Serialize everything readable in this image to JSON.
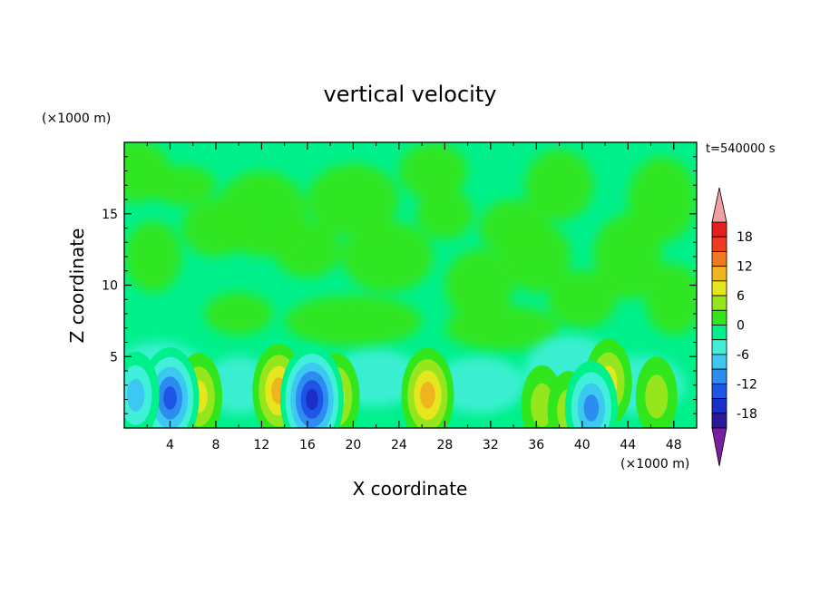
{
  "chart_data": {
    "type": "heatmap",
    "title": "vertical velocity",
    "xlabel": "X coordinate",
    "ylabel": "Z coordinate",
    "x_unit": "(×1000 m)",
    "y_unit": "(×1000 m)",
    "time_label": "t=540000 s",
    "xlim": [
      0,
      50
    ],
    "ylim": [
      0,
      20
    ],
    "x_ticks": [
      4,
      8,
      12,
      16,
      20,
      24,
      28,
      32,
      36,
      40,
      44,
      48
    ],
    "y_ticks": [
      5,
      10,
      15
    ],
    "colorbar": {
      "ticks": [
        18,
        12,
        6,
        0,
        -6,
        -12,
        -18
      ],
      "levels": [
        -21,
        -18,
        -15,
        -12,
        -9,
        -6,
        -3,
        0,
        3,
        6,
        9,
        12,
        15,
        18,
        21
      ],
      "colors": [
        "#7b1fa2",
        "#2a1a9a",
        "#1a2fc8",
        "#1e55e6",
        "#2d8cf0",
        "#3cc8f0",
        "#40f0d8",
        "#00f08c",
        "#32e61e",
        "#96e61e",
        "#e6e61e",
        "#f0b41e",
        "#f0781e",
        "#f03c1e",
        "#e61e1e",
        "#f0a0a0"
      ]
    },
    "features": [
      {
        "kind": "updraft",
        "x": 6.5,
        "z": 2.2,
        "value": 6
      },
      {
        "kind": "updraft",
        "x": 13.5,
        "z": 2.6,
        "value": 9
      },
      {
        "kind": "updraft",
        "x": 18.5,
        "z": 2.2,
        "value": 6
      },
      {
        "kind": "updraft",
        "x": 26.5,
        "z": 2.3,
        "value": 8
      },
      {
        "kind": "updraft",
        "x": 36.5,
        "z": 1.6,
        "value": 4
      },
      {
        "kind": "updraft",
        "x": 38.8,
        "z": 1.2,
        "value": 3
      },
      {
        "kind": "updraft",
        "x": 42.3,
        "z": 3.2,
        "value": 5
      },
      {
        "kind": "updraft",
        "x": 46.5,
        "z": 2.2,
        "value": 4
      },
      {
        "kind": "downdraft",
        "x": 4.0,
        "z": 2.1,
        "value": -12
      },
      {
        "kind": "downdraft",
        "x": 16.4,
        "z": 2.0,
        "value": -14
      },
      {
        "kind": "downdraft",
        "x": 1.0,
        "z": 2.3,
        "value": -6
      },
      {
        "kind": "downdraft",
        "x": 40.8,
        "z": 1.4,
        "value": -8
      }
    ]
  }
}
